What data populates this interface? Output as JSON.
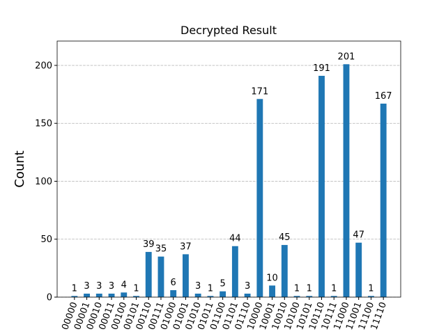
{
  "chart_data": {
    "type": "bar",
    "title": "Decrypted Result",
    "ylabel": "Count",
    "categories": [
      "00000",
      "00001",
      "00010",
      "00011",
      "00100",
      "00101",
      "00110",
      "00111",
      "01000",
      "01001",
      "01010",
      "01011",
      "01100",
      "01101",
      "01110",
      "10000",
      "10001",
      "10010",
      "10100",
      "10101",
      "10110",
      "10111",
      "11000",
      "11001",
      "11100",
      "11110"
    ],
    "values": [
      1,
      3,
      3,
      3,
      4,
      1,
      39,
      35,
      6,
      37,
      3,
      1,
      5,
      44,
      3,
      171,
      10,
      45,
      1,
      1,
      191,
      1,
      201,
      47,
      1,
      167
    ],
    "color": "#1f77b4",
    "ylim": [
      0,
      221
    ],
    "yticks": [
      0,
      50,
      100,
      150,
      200
    ],
    "grid": true
  }
}
